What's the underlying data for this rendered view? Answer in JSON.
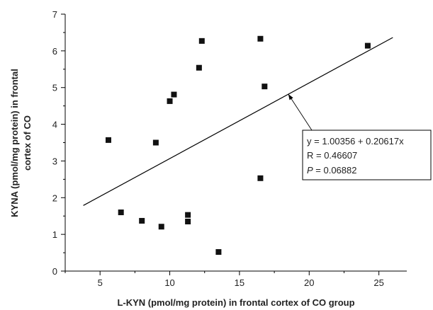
{
  "chart_data": {
    "type": "scatter",
    "title": "",
    "xlabel": "L-KYN (pmol/mg protein) in frontal cortex of CO group",
    "ylabel_lines": [
      "KYNA (pmol/mg protein) in frontal",
      "cortex of CO"
    ],
    "xlim": [
      2.5,
      27
    ],
    "ylim": [
      0,
      7
    ],
    "x_ticks": [
      5,
      10,
      15,
      20,
      25
    ],
    "y_ticks": [
      0,
      1,
      2,
      3,
      4,
      5,
      6,
      7
    ],
    "grid": false,
    "points": [
      {
        "x": 5.6,
        "y": 3.57
      },
      {
        "x": 6.5,
        "y": 1.6
      },
      {
        "x": 8.0,
        "y": 1.37
      },
      {
        "x": 9.0,
        "y": 3.5
      },
      {
        "x": 9.4,
        "y": 1.21
      },
      {
        "x": 10.0,
        "y": 4.63
      },
      {
        "x": 10.3,
        "y": 4.81
      },
      {
        "x": 11.3,
        "y": 1.53
      },
      {
        "x": 11.3,
        "y": 1.35
      },
      {
        "x": 12.1,
        "y": 5.54
      },
      {
        "x": 12.3,
        "y": 6.27
      },
      {
        "x": 13.5,
        "y": 0.52
      },
      {
        "x": 16.5,
        "y": 6.33
      },
      {
        "x": 16.5,
        "y": 2.53
      },
      {
        "x": 16.8,
        "y": 5.03
      },
      {
        "x": 24.2,
        "y": 6.14
      }
    ],
    "fit_line": {
      "intercept": 1.00356,
      "slope": 0.20617,
      "x_range": [
        3.8,
        26
      ]
    },
    "annotation": {
      "lines": [
        "y = 1.00356 + 0.20617x",
        "R = 0.46607"
      ],
      "p_symbol": "P",
      "p_rest": " = 0.06882",
      "arrow_target": {
        "x": 18.5,
        "y": 4.82
      }
    }
  }
}
